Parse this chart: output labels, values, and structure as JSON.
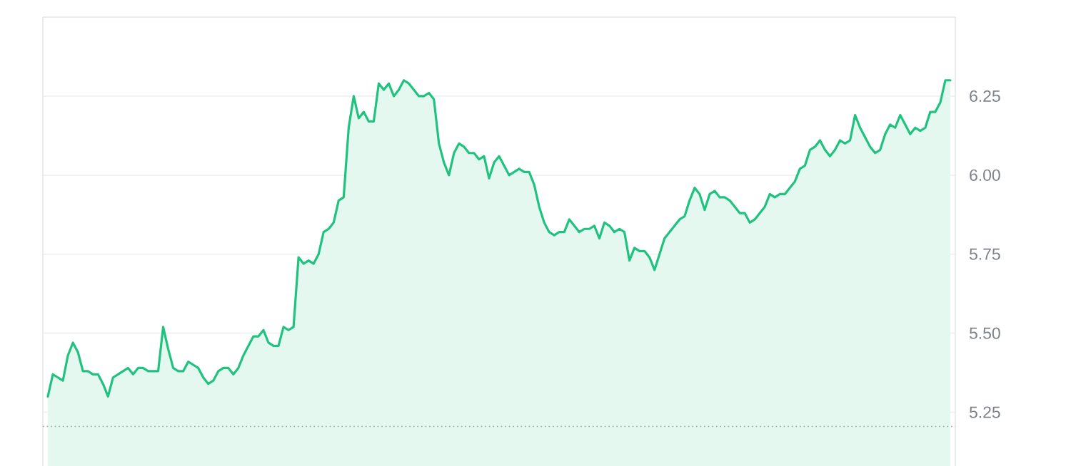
{
  "chart_data": {
    "type": "area",
    "categories": [
      null,
      null,
      null,
      null,
      null,
      null,
      null,
      null,
      null,
      null,
      null,
      null,
      null,
      null,
      null,
      null,
      null,
      null,
      null,
      null,
      null,
      null,
      null,
      null,
      null,
      null,
      null,
      null,
      null,
      null,
      null,
      null,
      null,
      null,
      null,
      null,
      null,
      null,
      null,
      null,
      null,
      null,
      null,
      null,
      null,
      null,
      null,
      null,
      null,
      null,
      null,
      null,
      null,
      null,
      null,
      null,
      null,
      null,
      null,
      null,
      null,
      null,
      null,
      null,
      null,
      null,
      null,
      null,
      null,
      null,
      null,
      null,
      null,
      null,
      null,
      null,
      null,
      null,
      null,
      null,
      null,
      null,
      null,
      null,
      null,
      null,
      null,
      null,
      null,
      null,
      null,
      null,
      null,
      null,
      null,
      null,
      null,
      null,
      null,
      null,
      null,
      null,
      null,
      null,
      null,
      null,
      null,
      null,
      null,
      null,
      null,
      null,
      null,
      null,
      null,
      null,
      null,
      null,
      null,
      null,
      null,
      null,
      null,
      null,
      null,
      null,
      null,
      null,
      null,
      null,
      null,
      null,
      null,
      null,
      null,
      null,
      null,
      null,
      null,
      null,
      null,
      null,
      null,
      null,
      null,
      null,
      null,
      null,
      null,
      null,
      null,
      null,
      null,
      null,
      null,
      null,
      null,
      null,
      null,
      null,
      null,
      null,
      null,
      null,
      null,
      null,
      null,
      null,
      null,
      null,
      null,
      null,
      null,
      null,
      null,
      null,
      null,
      null,
      null,
      null,
      null
    ],
    "series": [
      {
        "color": "#1fc27f",
        "values": [
          5.3,
          5.37,
          5.36,
          5.35,
          5.43,
          5.47,
          5.44,
          5.38,
          5.38,
          5.37,
          5.37,
          5.34,
          5.3,
          5.36,
          5.37,
          5.38,
          5.39,
          5.37,
          5.39,
          5.39,
          5.38,
          5.38,
          5.38,
          5.52,
          5.45,
          5.39,
          5.38,
          5.38,
          5.41,
          5.4,
          5.39,
          5.36,
          5.34,
          5.35,
          5.38,
          5.39,
          5.39,
          5.37,
          5.39,
          5.43,
          5.46,
          5.49,
          5.49,
          5.51,
          5.47,
          5.46,
          5.46,
          5.52,
          5.51,
          5.52,
          5.74,
          5.72,
          5.73,
          5.72,
          5.75,
          5.82,
          5.83,
          5.85,
          5.92,
          5.93,
          6.15,
          6.25,
          6.18,
          6.2,
          6.17,
          6.17,
          6.29,
          6.27,
          6.29,
          6.25,
          6.27,
          6.3,
          6.29,
          6.27,
          6.25,
          6.25,
          6.26,
          6.24,
          6.1,
          6.04,
          6.0,
          6.07,
          6.1,
          6.09,
          6.07,
          6.07,
          6.05,
          6.06,
          5.99,
          6.04,
          6.06,
          6.03,
          6.0,
          6.01,
          6.02,
          6.01,
          6.01,
          5.97,
          5.9,
          5.85,
          5.82,
          5.81,
          5.82,
          5.82,
          5.86,
          5.84,
          5.82,
          5.83,
          5.83,
          5.84,
          5.8,
          5.85,
          5.84,
          5.82,
          5.83,
          5.82,
          5.73,
          5.77,
          5.76,
          5.76,
          5.74,
          5.7,
          5.75,
          5.8,
          5.82,
          5.84,
          5.86,
          5.87,
          5.92,
          5.96,
          5.94,
          5.89,
          5.94,
          5.95,
          5.93,
          5.93,
          5.92,
          5.9,
          5.88,
          5.88,
          5.85,
          5.86,
          5.88,
          5.9,
          5.94,
          5.93,
          5.94,
          5.94,
          5.96,
          5.98,
          6.02,
          6.03,
          6.08,
          6.09,
          6.11,
          6.08,
          6.06,
          6.08,
          6.11,
          6.1,
          6.11,
          6.19,
          6.15,
          6.12,
          6.09,
          6.07,
          6.08,
          6.13,
          6.16,
          6.15,
          6.19,
          6.16,
          6.13,
          6.15,
          6.14,
          6.15,
          6.2,
          6.2,
          6.23,
          6.3,
          6.3
        ]
      }
    ],
    "ylim": [
      5.08,
      6.5
    ],
    "yticks": [
      {
        "value": 5.25,
        "label": "5.25"
      },
      {
        "value": 5.5,
        "label": "5.50"
      },
      {
        "value": 5.75,
        "label": "5.75"
      },
      {
        "value": 6.0,
        "label": "6.00"
      },
      {
        "value": 6.25,
        "label": "6.25"
      }
    ],
    "grid": "y",
    "tick_labels": "y",
    "ref_lines": [
      {
        "axis": "y",
        "value": 5.205,
        "color": "#9aa0a6",
        "line_style": "dotted"
      }
    ]
  }
}
